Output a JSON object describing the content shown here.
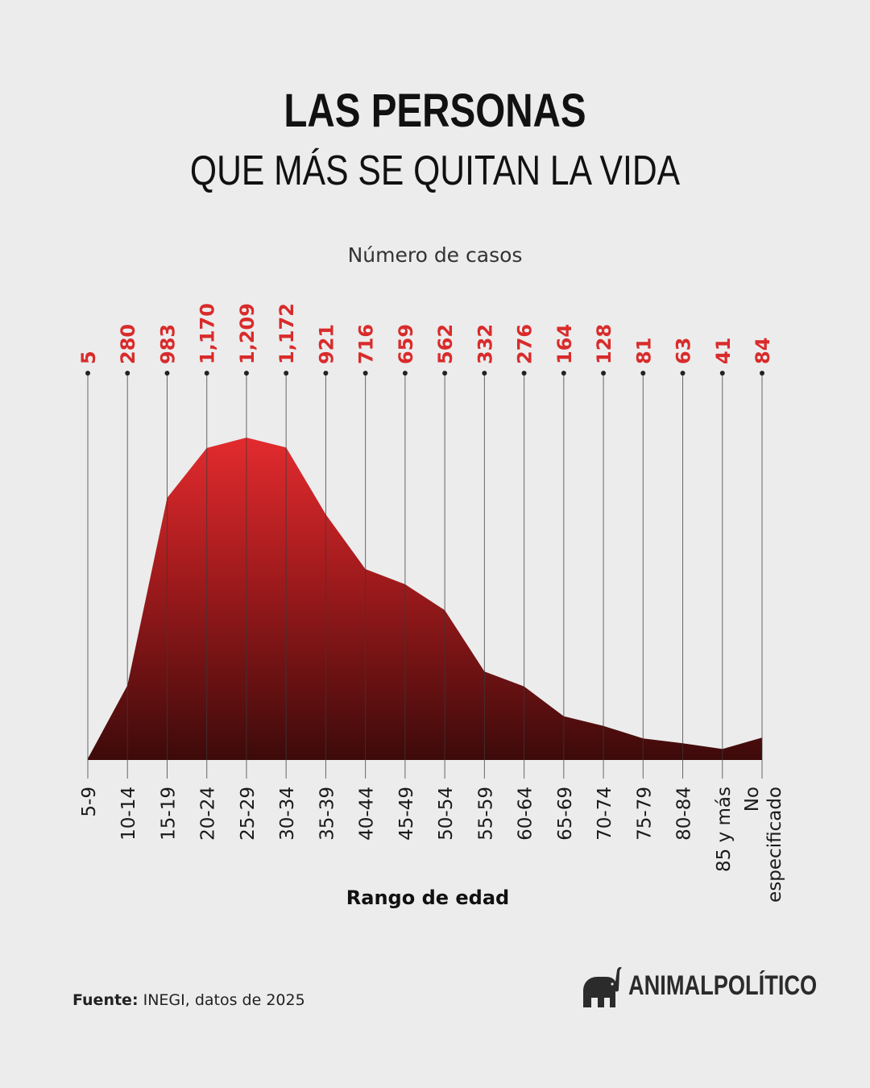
{
  "header": {
    "title_line1": "LAS PERSONAS",
    "title_line2": "QUE MÁS SE QUITAN LA VIDA"
  },
  "chart_data": {
    "type": "area",
    "ylabel": "Número de casos",
    "xlabel": "Rango de edad",
    "categories": [
      "5-9",
      "10-14",
      "15-19",
      "20-24",
      "25-29",
      "30-34",
      "35-39",
      "40-44",
      "45-49",
      "50-54",
      "55-59",
      "60-64",
      "65-69",
      "70-74",
      "75-79",
      "80-84",
      "85 y más",
      "No especificado"
    ],
    "values": [
      5,
      280,
      983,
      1170,
      1209,
      1172,
      921,
      716,
      659,
      562,
      332,
      276,
      164,
      128,
      81,
      63,
      41,
      84
    ],
    "value_labels": [
      "5",
      "280",
      "983",
      "1,170",
      "1,209",
      "1,172",
      "921",
      "716",
      "659",
      "562",
      "332",
      "276",
      "164",
      "128",
      "81",
      "63",
      "41",
      "84"
    ],
    "ylim": [
      0,
      1209
    ],
    "colors": {
      "area_top": "#e32b2e",
      "area_bottom": "#3d0a0a",
      "labels": "#d92b2b"
    }
  },
  "footer": {
    "source_label": "Fuente:",
    "source_text": " INEGI, datos de 2025",
    "logo_text": "ANIMALPOLÍTICO"
  }
}
